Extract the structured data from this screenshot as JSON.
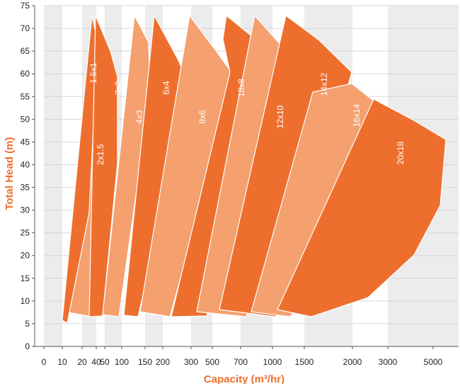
{
  "chart_data": {
    "type": "area",
    "title": "",
    "xlabel": "Capacity (m³/hr)",
    "ylabel": "Total Head (m)",
    "ylim": [
      0,
      75
    ],
    "x_scale": "categorical-log",
    "x_ticks": [
      "0",
      "10",
      "20",
      "40",
      "50",
      "100",
      "150",
      "200",
      "300",
      "500",
      "700",
      "1000",
      "1500",
      "2000",
      "3000",
      "5000"
    ],
    "y_ticks": [
      0,
      5,
      10,
      15,
      20,
      25,
      30,
      35,
      40,
      45,
      50,
      55,
      60,
      65,
      70,
      75
    ],
    "grid": true,
    "colors": {
      "dark": "#ee6f2d",
      "light": "#f4a06f",
      "grid_band": "#ececec",
      "axis_title": "#ee6f2d"
    },
    "series": [
      {
        "name": "2x1.5",
        "shade": "light",
        "x_range": [
          12,
          55
        ],
        "head_range": [
          6,
          57
        ]
      },
      {
        "name": "1.5x1",
        "shade": "dark",
        "x_range": [
          10,
          50
        ],
        "head_range": [
          5,
          73
        ]
      },
      {
        "name": "3x2",
        "shade": "dark",
        "x_range": [
          50,
          110
        ],
        "head_range": [
          7,
          73
        ]
      },
      {
        "name": "4x3",
        "shade": "light",
        "x_range": [
          70,
          210
        ],
        "head_range": [
          7,
          73
        ]
      },
      {
        "name": "6x4",
        "shade": "dark",
        "x_range": [
          120,
          330
        ],
        "head_range": [
          6,
          73
        ]
      },
      {
        "name": "8x6",
        "shade": "light",
        "x_range": [
          180,
          550
        ],
        "head_range": [
          6,
          73
        ]
      },
      {
        "name": "10x8",
        "shade": "dark",
        "x_range": [
          300,
          900
        ],
        "head_range": [
          6,
          73
        ]
      },
      {
        "name": "12x10",
        "shade": "light",
        "x_range": [
          480,
          1300
        ],
        "head_range": [
          6,
          73
        ]
      },
      {
        "name": "14x12",
        "shade": "dark",
        "x_range": [
          650,
          2000
        ],
        "head_range": [
          6,
          73
        ]
      },
      {
        "name": "16x14",
        "shade": "light",
        "x_range": [
          1100,
          3300
        ],
        "head_range": [
          7,
          57
        ]
      },
      {
        "name": "20x18",
        "shade": "dark",
        "x_range": [
          1500,
          5600
        ],
        "head_range": [
          6,
          54
        ]
      }
    ]
  }
}
